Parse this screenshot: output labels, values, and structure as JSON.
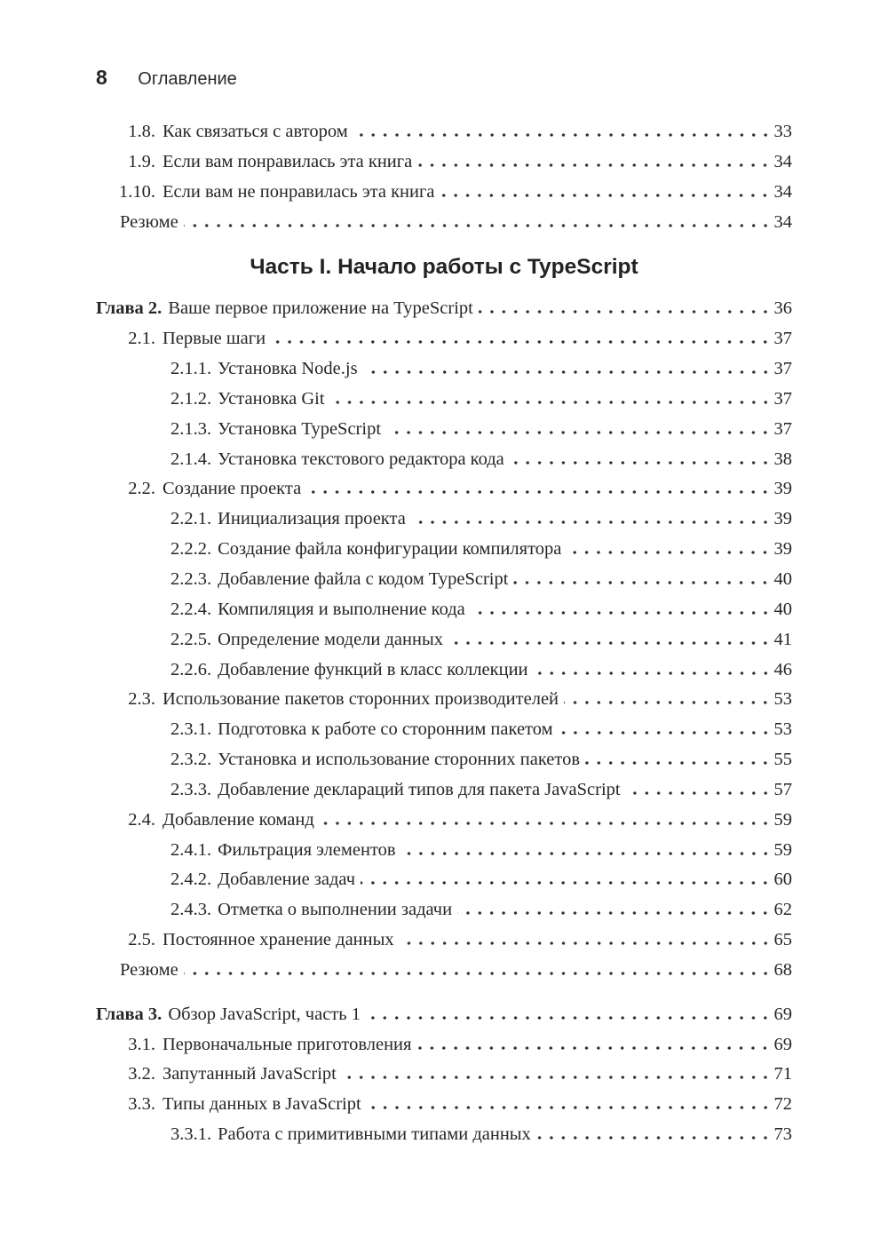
{
  "page_header": {
    "page_number": "8",
    "title": "Оглавление"
  },
  "colors": {
    "text": "#262626",
    "background": "#ffffff"
  },
  "toc": {
    "items": [
      {
        "level": "2",
        "num": "1.8.",
        "title": "Как связаться с автором",
        "page": "33"
      },
      {
        "level": "2",
        "num": "1.9.",
        "title": "Если вам понравилась эта книга",
        "page": "34"
      },
      {
        "level": "2",
        "num": "1.10.",
        "title": "Если вам не понравилась эта книга",
        "page": "34"
      },
      {
        "level": "resume",
        "num": "",
        "title": "Резюме",
        "page": "34"
      },
      {
        "type": "part",
        "title": "Часть I. Начало работы с TypeScript"
      },
      {
        "level": "chapter",
        "num": "Глава 2.",
        "title": "Ваше первое приложение на TypeScript",
        "page": "36"
      },
      {
        "level": "2",
        "num": "2.1.",
        "title": "Первые шаги",
        "page": "37"
      },
      {
        "level": "3",
        "num": "2.1.1.",
        "title": "Установка Node.js",
        "page": "37"
      },
      {
        "level": "3",
        "num": "2.1.2.",
        "title": "Установка Git",
        "page": "37"
      },
      {
        "level": "3",
        "num": "2.1.3.",
        "title": "Установка TypeScript",
        "page": "37"
      },
      {
        "level": "3",
        "num": "2.1.4.",
        "title": "Установка текстового редактора кода",
        "page": "38"
      },
      {
        "level": "2",
        "num": "2.2.",
        "title": "Создание проекта",
        "page": "39"
      },
      {
        "level": "3",
        "num": "2.2.1.",
        "title": "Инициализация проекта",
        "page": "39"
      },
      {
        "level": "3",
        "num": "2.2.2.",
        "title": "Создание файла конфигурации компилятора",
        "page": "39"
      },
      {
        "level": "3",
        "num": "2.2.3.",
        "title": "Добавление файла с кодом TypeScript",
        "page": "40"
      },
      {
        "level": "3",
        "num": "2.2.4.",
        "title": "Компиляция и выполнение кода",
        "page": "40"
      },
      {
        "level": "3",
        "num": "2.2.5.",
        "title": "Определение модели данных",
        "page": "41"
      },
      {
        "level": "3",
        "num": "2.2.6.",
        "title": "Добавление функций в класс коллекции",
        "page": "46"
      },
      {
        "level": "2",
        "num": "2.3.",
        "title": "Использование пакетов сторонних производителей",
        "page": "53"
      },
      {
        "level": "3",
        "num": "2.3.1.",
        "title": "Подготовка к работе со сторонним пакетом",
        "page": "53"
      },
      {
        "level": "3",
        "num": "2.3.2.",
        "title": "Установка и использование сторонних пакетов",
        "page": "55"
      },
      {
        "level": "3",
        "num": "2.3.3.",
        "title": "Добавление деклараций типов для пакета JavaScript",
        "page": "57"
      },
      {
        "level": "2",
        "num": "2.4.",
        "title": "Добавление команд",
        "page": "59"
      },
      {
        "level": "3",
        "num": "2.4.1.",
        "title": "Фильтрация элементов",
        "page": "59"
      },
      {
        "level": "3",
        "num": "2.4.2.",
        "title": "Добавление задач",
        "page": "60"
      },
      {
        "level": "3",
        "num": "2.4.3.",
        "title": "Отметка о выполнении задачи",
        "page": "62"
      },
      {
        "level": "2",
        "num": "2.5.",
        "title": "Постоянное хранение данных",
        "page": "65"
      },
      {
        "level": "resume",
        "num": "",
        "title": "Резюме",
        "page": "68"
      },
      {
        "level": "chapter",
        "num": "Глава 3.",
        "title": "Обзор JavaScript, часть 1",
        "page": "69",
        "gap_before": true
      },
      {
        "level": "2",
        "num": "3.1.",
        "title": "Первоначальные приготовления",
        "page": "69"
      },
      {
        "level": "2",
        "num": "3.2.",
        "title": "Запутанный JavaScript",
        "page": "71"
      },
      {
        "level": "2",
        "num": "3.3.",
        "title": "Типы данных в JavaScript",
        "page": "72"
      },
      {
        "level": "3",
        "num": "3.3.1.",
        "title": "Работа с примитивными типами данных",
        "page": "73"
      }
    ]
  }
}
